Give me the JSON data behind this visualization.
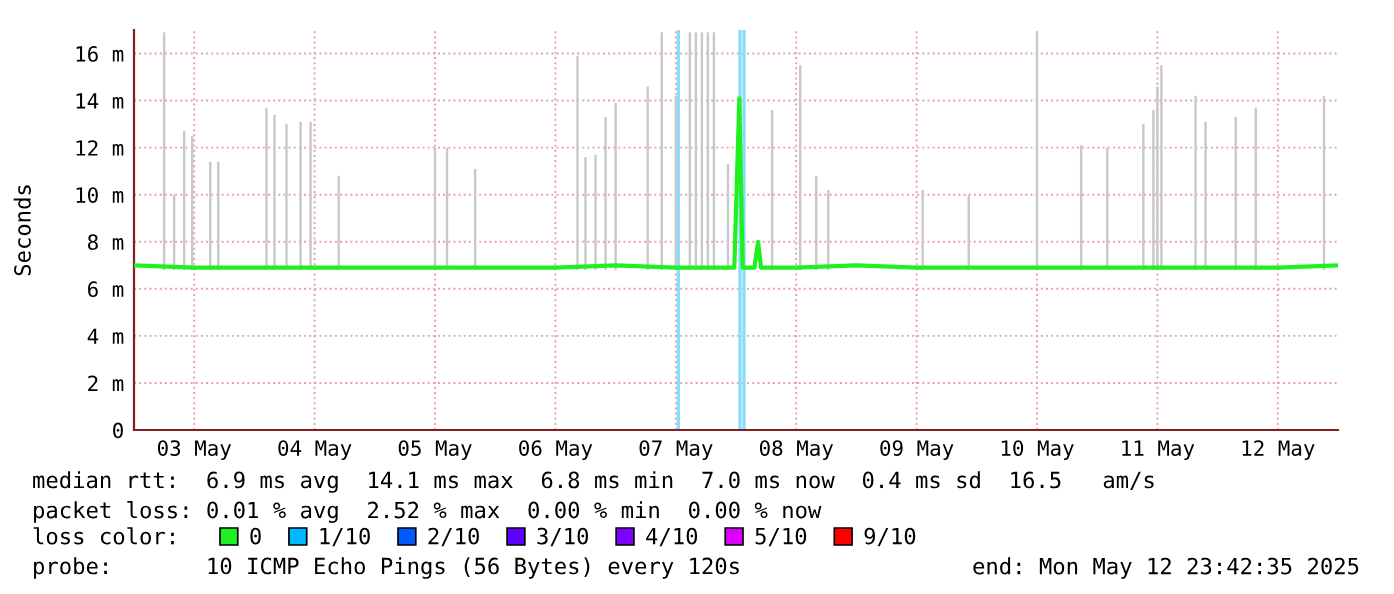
{
  "chart_data": {
    "type": "line",
    "ylabel": "Seconds",
    "legend_title": "loss color:",
    "legend": "bottom",
    "grid": true,
    "xlim": [
      "2025-05-03T00:00",
      "2025-05-13T00:00"
    ],
    "xticks": [
      {
        "value": "2025-05-03T12:00",
        "label": "03 May"
      },
      {
        "value": "2025-05-04T12:00",
        "label": "04 May"
      },
      {
        "value": "2025-05-05T12:00",
        "label": "05 May"
      },
      {
        "value": "2025-05-06T12:00",
        "label": "06 May"
      },
      {
        "value": "2025-05-07T12:00",
        "label": "07 May"
      },
      {
        "value": "2025-05-08T12:00",
        "label": "08 May"
      },
      {
        "value": "2025-05-09T12:00",
        "label": "09 May"
      },
      {
        "value": "2025-05-10T12:00",
        "label": "10 May"
      },
      {
        "value": "2025-05-11T12:00",
        "label": "11 May"
      },
      {
        "value": "2025-05-12T12:00",
        "label": "12 May"
      }
    ],
    "ylim": [
      0,
      17
    ],
    "yticks": [
      0,
      {
        "value": 2,
        "label": "2 m"
      },
      {
        "value": 4,
        "label": "4 m"
      },
      {
        "value": 6,
        "label": "6 m"
      },
      {
        "value": 8,
        "label": "8 m"
      },
      {
        "value": 10,
        "label": "10 m"
      },
      {
        "value": 12,
        "label": "12 m"
      },
      {
        "value": 14,
        "label": "14 m"
      },
      {
        "value": 16,
        "label": "16 m"
      }
    ],
    "ref_lines": [
      {
        "axis": "x",
        "value": "2025-05-07T12:30",
        "color": "#88ddf8"
      },
      {
        "axis": "x",
        "value": "2025-05-08T00:48",
        "color": "#88ddf8"
      },
      {
        "axis": "x",
        "value": "2025-05-08T01:36",
        "color": "#88ddf8"
      }
    ],
    "series": [
      {
        "type": "bar",
        "color": "#c8c8c8",
        "x": [
          "2025-05-03T06:00",
          "2025-05-03T08:00",
          "2025-05-03T10:00",
          "2025-05-03T11:36",
          "2025-05-03T15:12",
          "2025-05-03T16:48",
          "2025-05-04T02:24",
          "2025-05-04T04:00",
          "2025-05-04T06:24",
          "2025-05-04T09:12",
          "2025-05-04T11:12",
          "2025-05-04T16:48",
          "2025-05-05T12:00",
          "2025-05-05T14:24",
          "2025-05-05T20:00",
          "2025-05-06T16:24",
          "2025-05-06T18:00",
          "2025-05-06T20:00",
          "2025-05-06T22:00",
          "2025-05-07T00:00",
          "2025-05-07T06:24",
          "2025-05-07T09:12",
          "2025-05-07T12:00",
          "2025-05-07T14:48",
          "2025-05-07T16:00",
          "2025-05-07T17:12",
          "2025-05-07T18:24",
          "2025-05-07T19:36",
          "2025-05-07T22:24",
          "2025-05-08T07:12",
          "2025-05-08T12:48",
          "2025-05-08T16:00",
          "2025-05-08T18:24",
          "2025-05-09T13:12",
          "2025-05-09T22:24",
          "2025-05-10T12:00",
          "2025-05-10T20:48",
          "2025-05-11T02:00",
          "2025-05-11T09:12",
          "2025-05-11T11:12",
          "2025-05-11T12:00",
          "2025-05-11T12:48",
          "2025-05-11T19:36",
          "2025-05-11T21:36",
          "2025-05-12T03:36",
          "2025-05-12T07:36",
          "2025-05-12T21:12"
        ],
        "base": [
          6.8,
          6.8,
          6.8,
          6.8,
          6.8,
          6.8,
          6.8,
          6.8,
          6.8,
          6.8,
          6.8,
          6.8,
          6.8,
          6.8,
          6.8,
          6.8,
          6.8,
          6.8,
          6.8,
          6.8,
          6.8,
          6.8,
          6.8,
          6.8,
          6.8,
          6.8,
          6.8,
          6.8,
          6.8,
          6.8,
          6.8,
          6.8,
          6.8,
          6.8,
          6.8,
          6.8,
          6.8,
          6.8,
          6.8,
          6.8,
          6.8,
          6.8,
          6.8,
          6.8,
          6.8,
          6.8,
          6.8
        ],
        "values": [
          10.1,
          3.2,
          5.9,
          5.7,
          4.6,
          4.6,
          6.9,
          6.6,
          6.2,
          6.3,
          6.3,
          4.0,
          5.2,
          5.2,
          4.3,
          9.1,
          4.8,
          4.9,
          6.5,
          7.1,
          7.8,
          10.1,
          7.4,
          10.1,
          10.1,
          10.1,
          10.1,
          10.1,
          4.5,
          6.8,
          8.7,
          4.0,
          3.4,
          3.4,
          3.2,
          10.1,
          5.3,
          5.2,
          6.2,
          6.8,
          7.8,
          8.7,
          7.4,
          6.3,
          6.5,
          6.9,
          7.4
        ]
      },
      {
        "name": "0",
        "color": "#20f020",
        "x": [
          "2025-05-03T00:00",
          "2025-05-03T12:00",
          "2025-05-04T00:00",
          "2025-05-04T12:00",
          "2025-05-05T00:00",
          "2025-05-05T12:00",
          "2025-05-06T00:00",
          "2025-05-06T12:00",
          "2025-05-07T00:00",
          "2025-05-07T12:00",
          "2025-05-07T23:40",
          "2025-05-08T00:40",
          "2025-05-08T01:20",
          "2025-05-08T03:40",
          "2025-05-08T04:24",
          "2025-05-08T05:00",
          "2025-05-08T12:00",
          "2025-05-09T00:00",
          "2025-05-09T12:00",
          "2025-05-10T00:00",
          "2025-05-10T12:00",
          "2025-05-11T00:00",
          "2025-05-11T12:00",
          "2025-05-12T00:00",
          "2025-05-12T12:00",
          "2025-05-13T00:00"
        ],
        "values": [
          7.0,
          6.9,
          6.9,
          6.9,
          6.9,
          6.9,
          6.9,
          6.9,
          7.0,
          6.9,
          6.9,
          14.1,
          6.9,
          6.9,
          8.0,
          6.9,
          6.9,
          7.0,
          6.9,
          6.9,
          6.9,
          6.9,
          6.9,
          6.9,
          6.9,
          7.0
        ]
      },
      {
        "name": "1/10",
        "color": "#00b8ff"
      },
      {
        "name": "2/10",
        "color": "#0059ff"
      },
      {
        "name": "3/10",
        "color": "#5e00ff"
      },
      {
        "name": "4/10",
        "color": "#7e00ff"
      },
      {
        "name": "5/10",
        "color": "#dd00ff"
      },
      {
        "name": "9/10",
        "color": "#ff0000"
      }
    ],
    "annotations": [
      "median rtt:  6.9 ms avg  14.1 ms max  6.8 ms min  7.0 ms now  0.4 ms sd  16.5   am/s",
      "packet loss: 0.01 % avg  2.52 % max  0.00 % min  0.00 % now",
      "probe:       10 ICMP Echo Pings (56 Bytes) every 120s",
      "end: Mon May 12 23:42:35 2025"
    ]
  }
}
